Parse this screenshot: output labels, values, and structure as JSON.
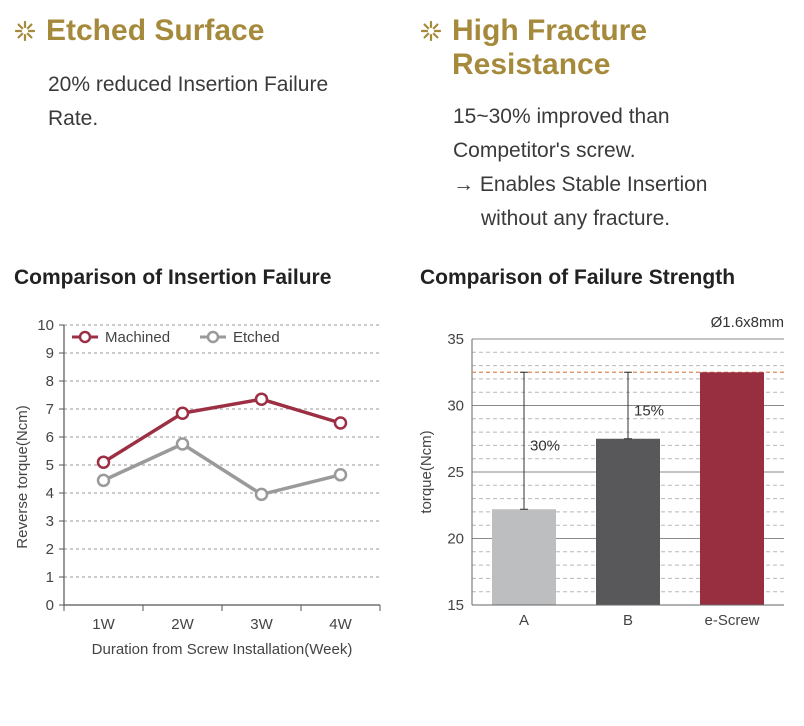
{
  "features": [
    {
      "title_lines": [
        "Etched Surface"
      ],
      "icon": "sparkle-icon",
      "text_lines": [
        "20% reduced Insertion Failure",
        "Rate."
      ]
    },
    {
      "title_lines": [
        "High Fracture",
        "Resistance"
      ],
      "icon": "sparkle-icon",
      "text_lines": [
        "15~30% improved than",
        "Competitor's screw.",
        "→ Enables Stable Insertion",
        "without any fracture."
      ]
    }
  ],
  "colors": {
    "gold": "#a68a3c",
    "machined": "#9c2f43",
    "etched": "#9a9a9a",
    "bar_a": "#bdbec0",
    "bar_b": "#58585a",
    "bar_escrew": "#982f40",
    "ref_line": "#e08a55"
  },
  "chart_data": [
    {
      "type": "line",
      "title": "Comparison of Insertion Failure",
      "categories": [
        "1W",
        "2W",
        "3W",
        "4W"
      ],
      "series": [
        {
          "name": "Machined",
          "values": [
            5.1,
            6.85,
            7.35,
            6.5
          ]
        },
        {
          "name": "Etched",
          "values": [
            4.45,
            5.75,
            3.95,
            4.65
          ]
        }
      ],
      "xlabel": "Duration from Screw Installation(Week)",
      "ylabel": "Reverse torque(Ncm)",
      "ylim": [
        0,
        10
      ],
      "yticks": [
        "0",
        "1",
        "2",
        "3",
        "4",
        "5",
        "6",
        "7",
        "8",
        "9",
        "10"
      ],
      "grid": "dashed horizontal",
      "legend": "top-left"
    },
    {
      "type": "bar",
      "title": "Comparison of Failure Strength",
      "subtitle": "Ø1.6x8mm",
      "categories": [
        "A",
        "B",
        "e-Screw"
      ],
      "values": [
        22.2,
        27.5,
        32.5
      ],
      "annotations": [
        "30%",
        "15%"
      ],
      "ylabel": "torque(Ncm)",
      "ylim": [
        15,
        35
      ],
      "yticks": [
        "15",
        "20",
        "25",
        "30",
        "35"
      ],
      "reference_value": 32.5,
      "grid": "horizontal"
    }
  ]
}
